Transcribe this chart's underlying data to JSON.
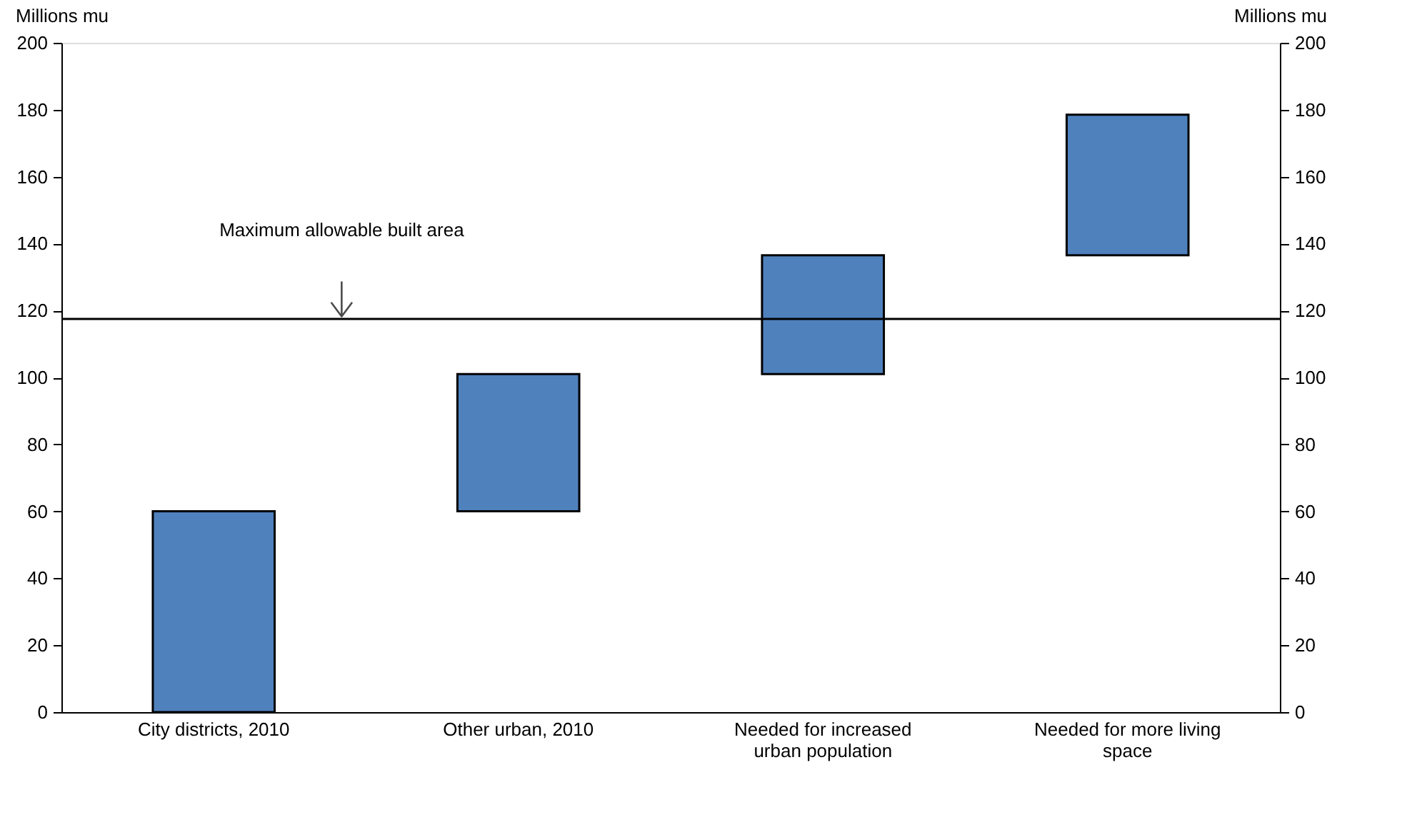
{
  "chart_data": {
    "type": "bar",
    "categories": [
      "City districts, 2010",
      "Other urban, 2010",
      "Needed for increased urban population",
      "Needed for more living space"
    ],
    "values": [
      60,
      41,
      35.5,
      42
    ],
    "base": [
      0,
      60,
      101,
      136.5
    ],
    "color": "#4f81bd",
    "ylabel": "Millions mu",
    "y2label": "Millions mu",
    "ylim": [
      0,
      200
    ],
    "yticks": [
      0,
      20,
      40,
      60,
      80,
      100,
      120,
      140,
      160,
      180,
      200
    ],
    "y2lim": [
      0,
      200
    ],
    "y2ticks": [
      0,
      20,
      40,
      60,
      80,
      100,
      120,
      140,
      160,
      180,
      200
    ],
    "ref_lines": [
      {
        "axis": "y",
        "value": 117.5,
        "label": "Maximum allowable built area",
        "color": "#000000"
      }
    ],
    "grid": false,
    "legend": false
  }
}
